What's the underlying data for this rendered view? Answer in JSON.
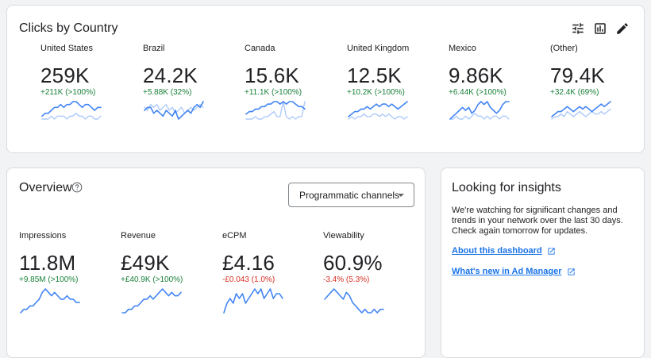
{
  "clicks": {
    "title": "Clicks by Country",
    "icons": [
      "tune-icon",
      "bar-chart-icon",
      "edit-icon"
    ],
    "countries": [
      {
        "label": "United States",
        "value": "259K",
        "delta": "+211K (>100%)",
        "trend": "up",
        "current": [
          3,
          4,
          4,
          5,
          6,
          6,
          7,
          6,
          7,
          7,
          8,
          8,
          7,
          6,
          7,
          7,
          6,
          5,
          6,
          6
        ],
        "previous": [
          2,
          2,
          2,
          3,
          2,
          3,
          3,
          3,
          2,
          3,
          3,
          4,
          3,
          3,
          2,
          3,
          3,
          2,
          2,
          3
        ]
      },
      {
        "label": "Brazil",
        "value": "24.2K",
        "delta": "+5.88K (32%)",
        "trend": "up",
        "current": [
          5,
          6,
          6,
          4,
          5,
          4,
          3,
          5,
          4,
          3,
          5,
          2,
          3,
          4,
          5,
          4,
          6,
          7,
          6,
          8
        ],
        "previous": [
          6,
          5,
          7,
          6,
          7,
          5,
          6,
          7,
          5,
          6,
          4,
          5,
          6,
          4,
          5,
          6,
          5,
          6,
          7,
          6
        ]
      },
      {
        "label": "Canada",
        "value": "15.6K",
        "delta": "+11.1K (>100%)",
        "trend": "up",
        "current": [
          4,
          5,
          5,
          6,
          6,
          7,
          7,
          8,
          8,
          9,
          9,
          8,
          9,
          8,
          9,
          9,
          8,
          7,
          7,
          6
        ],
        "previous": [
          2,
          2,
          2,
          3,
          2,
          2,
          3,
          3,
          4,
          5,
          3,
          3,
          9,
          3,
          2,
          3,
          2,
          3,
          3,
          9
        ]
      },
      {
        "label": "United Kingdom",
        "value": "12.5K",
        "delta": "+10.2K (>100%)",
        "trend": "up",
        "current": [
          3,
          4,
          5,
          5,
          6,
          6,
          7,
          6,
          7,
          8,
          7,
          8,
          8,
          7,
          8,
          7,
          6,
          7,
          8,
          9
        ],
        "previous": [
          2,
          3,
          2,
          3,
          3,
          4,
          3,
          3,
          4,
          4,
          3,
          4,
          3,
          4,
          3,
          2,
          3,
          3,
          2,
          3
        ]
      },
      {
        "label": "Mexico",
        "value": "9.86K",
        "delta": "+6.44K (>100%)",
        "trend": "up",
        "current": [
          2,
          3,
          4,
          5,
          6,
          5,
          6,
          4,
          5,
          7,
          8,
          7,
          8,
          6,
          5,
          4,
          5,
          7,
          8,
          8
        ],
        "previous": [
          2,
          2,
          3,
          2,
          2,
          3,
          2,
          3,
          4,
          3,
          3,
          2,
          3,
          2,
          3,
          3,
          2,
          3,
          3,
          2
        ]
      },
      {
        "label": "(Other)",
        "value": "79.4K",
        "delta": "+32.4K (69%)",
        "trend": "up",
        "current": [
          3,
          4,
          5,
          5,
          6,
          7,
          6,
          5,
          6,
          7,
          6,
          7,
          6,
          5,
          6,
          7,
          8,
          7,
          8,
          9
        ],
        "previous": [
          2,
          3,
          3,
          4,
          3,
          5,
          4,
          3,
          4,
          5,
          4,
          3,
          4,
          5,
          4,
          4,
          5,
          4,
          5,
          6
        ]
      }
    ]
  },
  "overview": {
    "title": "Overview",
    "dropdown_label": "Programmatic channels",
    "metrics": [
      {
        "label": "Impressions",
        "value": "11.8M",
        "delta": "+9.85M (>100%)",
        "trend": "up",
        "current": [
          2,
          3,
          3,
          4,
          4,
          5,
          6,
          8,
          9,
          8,
          7,
          8,
          7,
          6,
          6,
          7,
          6,
          6,
          5,
          5
        ]
      },
      {
        "label": "Revenue",
        "value": "£49K",
        "delta": "+£40.9K (>100%)",
        "trend": "up",
        "current": [
          2,
          2,
          3,
          3,
          4,
          4,
          5,
          6,
          6,
          7,
          6,
          7,
          8,
          9,
          8,
          7,
          8,
          7,
          7,
          8
        ]
      },
      {
        "label": "eCPM",
        "value": "£4.16",
        "delta": "-£0.043 (1.0%)",
        "trend": "down",
        "current": [
          3,
          5,
          6,
          5,
          7,
          6,
          7,
          5,
          6,
          7,
          8,
          7,
          8,
          6,
          7,
          8,
          6,
          7,
          7,
          6
        ]
      },
      {
        "label": "Viewability",
        "value": "60.9%",
        "delta": "-3.4% (5.3%)",
        "trend": "down",
        "current": [
          6,
          7,
          8,
          9,
          8,
          7,
          6,
          8,
          7,
          5,
          4,
          3,
          2,
          3,
          2,
          2,
          3,
          2,
          3,
          3
        ]
      }
    ]
  },
  "insights": {
    "title": "Looking for insights",
    "body": "We're watching for significant changes and trends in your network over the last 30 days. Check again tomorrow for updates.",
    "links": [
      {
        "label": "About this dashboard"
      },
      {
        "label": "What's new in Ad Manager"
      }
    ]
  },
  "colors": {
    "accent": "#1a73e8",
    "spark_current": "#4285f4",
    "spark_previous": "#aecbfa",
    "positive": "#188038",
    "negative": "#d93025"
  }
}
